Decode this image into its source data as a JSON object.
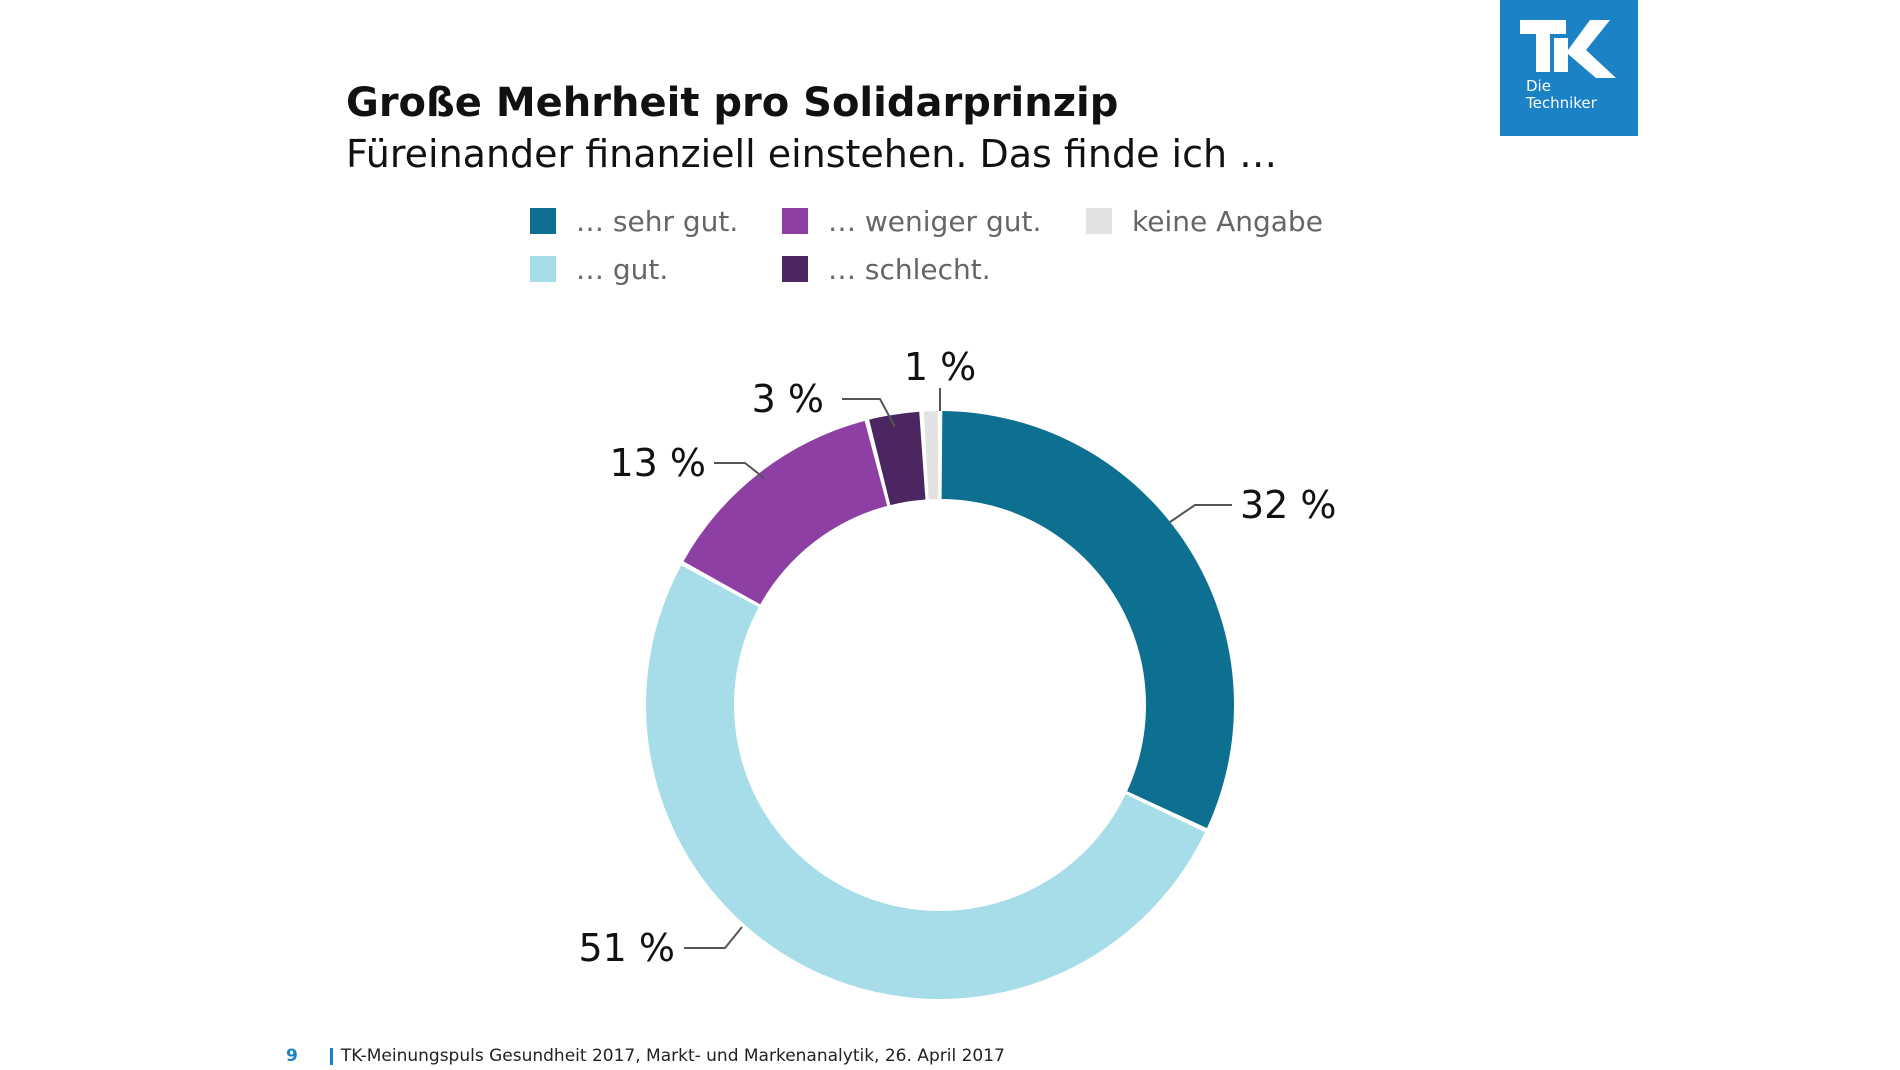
{
  "title": "Große Mehrheit pro Solidarprinzip",
  "subtitle": "Füreinander finanziell einstehen. Das finde ich …",
  "logo": {
    "line1": "Die",
    "line2": "Techniker",
    "brand_color": "#1b82c5"
  },
  "legend": [
    {
      "label": "… sehr gut.",
      "color": "#0d7090"
    },
    {
      "label": "… gut.",
      "color": "#a6dde8"
    },
    {
      "label": "… weniger gut.",
      "color": "#8e3fa3"
    },
    {
      "label": "… schlecht.",
      "color": "#4b2661"
    },
    {
      "label": "keine Angabe",
      "color": "#e2e2e2"
    }
  ],
  "chart_data": {
    "type": "pie",
    "style": "donut",
    "series": [
      {
        "label": "… sehr gut.",
        "value": 32,
        "display": "32 %",
        "color": "#0d7090"
      },
      {
        "label": "… gut.",
        "value": 51,
        "display": "51 %",
        "color": "#a6dde8"
      },
      {
        "label": "… weniger gut.",
        "value": 13,
        "display": "13 %",
        "color": "#8e3fa3"
      },
      {
        "label": "… schlecht.",
        "value": 3,
        "display": "3 %",
        "color": "#4b2661"
      },
      {
        "label": "keine Angabe",
        "value": 1,
        "display": "1 %",
        "color": "#e2e2e2"
      }
    ]
  },
  "footer": {
    "page_number": "9",
    "source": "TK-Meinungspuls Gesundheit 2017, Markt- und Markenanalytik, 26. April 2017"
  }
}
